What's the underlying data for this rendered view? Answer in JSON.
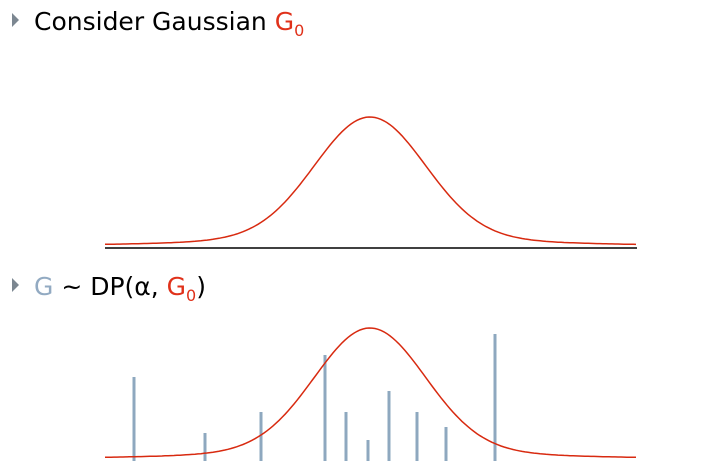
{
  "bullets": [
    {
      "text": "Consider Gaussian ",
      "symbol": "G",
      "subscript": "0"
    },
    {
      "lead": "G",
      "text": " ~ DP(α, ",
      "symbol": "G",
      "subscript": "0",
      "close": ")"
    }
  ]
}
